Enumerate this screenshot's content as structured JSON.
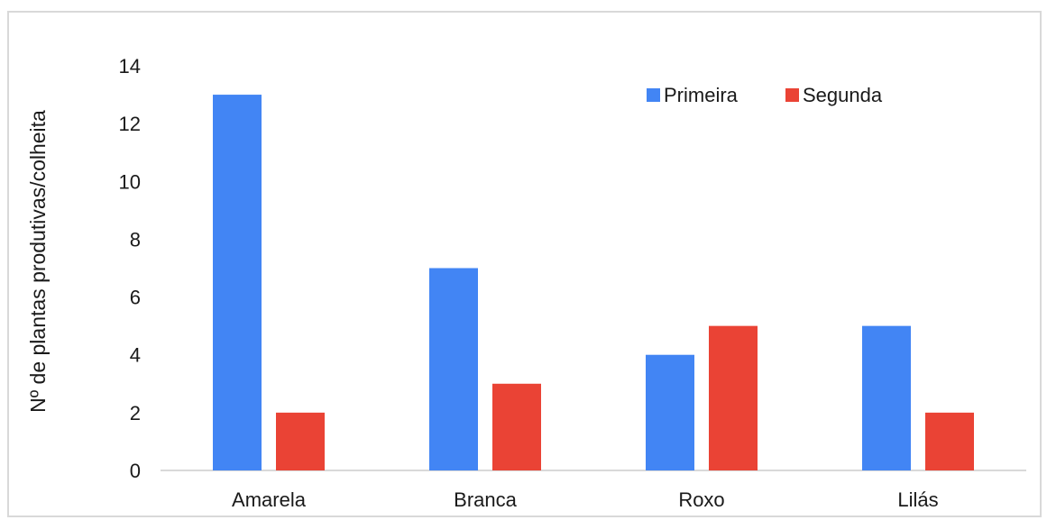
{
  "chart_data": {
    "type": "bar",
    "title": "",
    "xlabel": "",
    "ylabel": "Nº de plantas produtivas/colheita",
    "categories": [
      "Amarela",
      "Branca",
      "Roxo",
      "Lilás"
    ],
    "series": [
      {
        "name": "Primeira",
        "values": [
          13,
          7,
          4,
          5
        ],
        "color": "#4285f4"
      },
      {
        "name": "Segunda",
        "values": [
          2,
          3,
          5,
          2
        ],
        "color": "#ea4335"
      }
    ],
    "ylim": [
      0,
      14
    ],
    "yticks": [
      0,
      2,
      4,
      6,
      8,
      10,
      12,
      14
    ],
    "grid": false,
    "legend_position": "top-right"
  }
}
